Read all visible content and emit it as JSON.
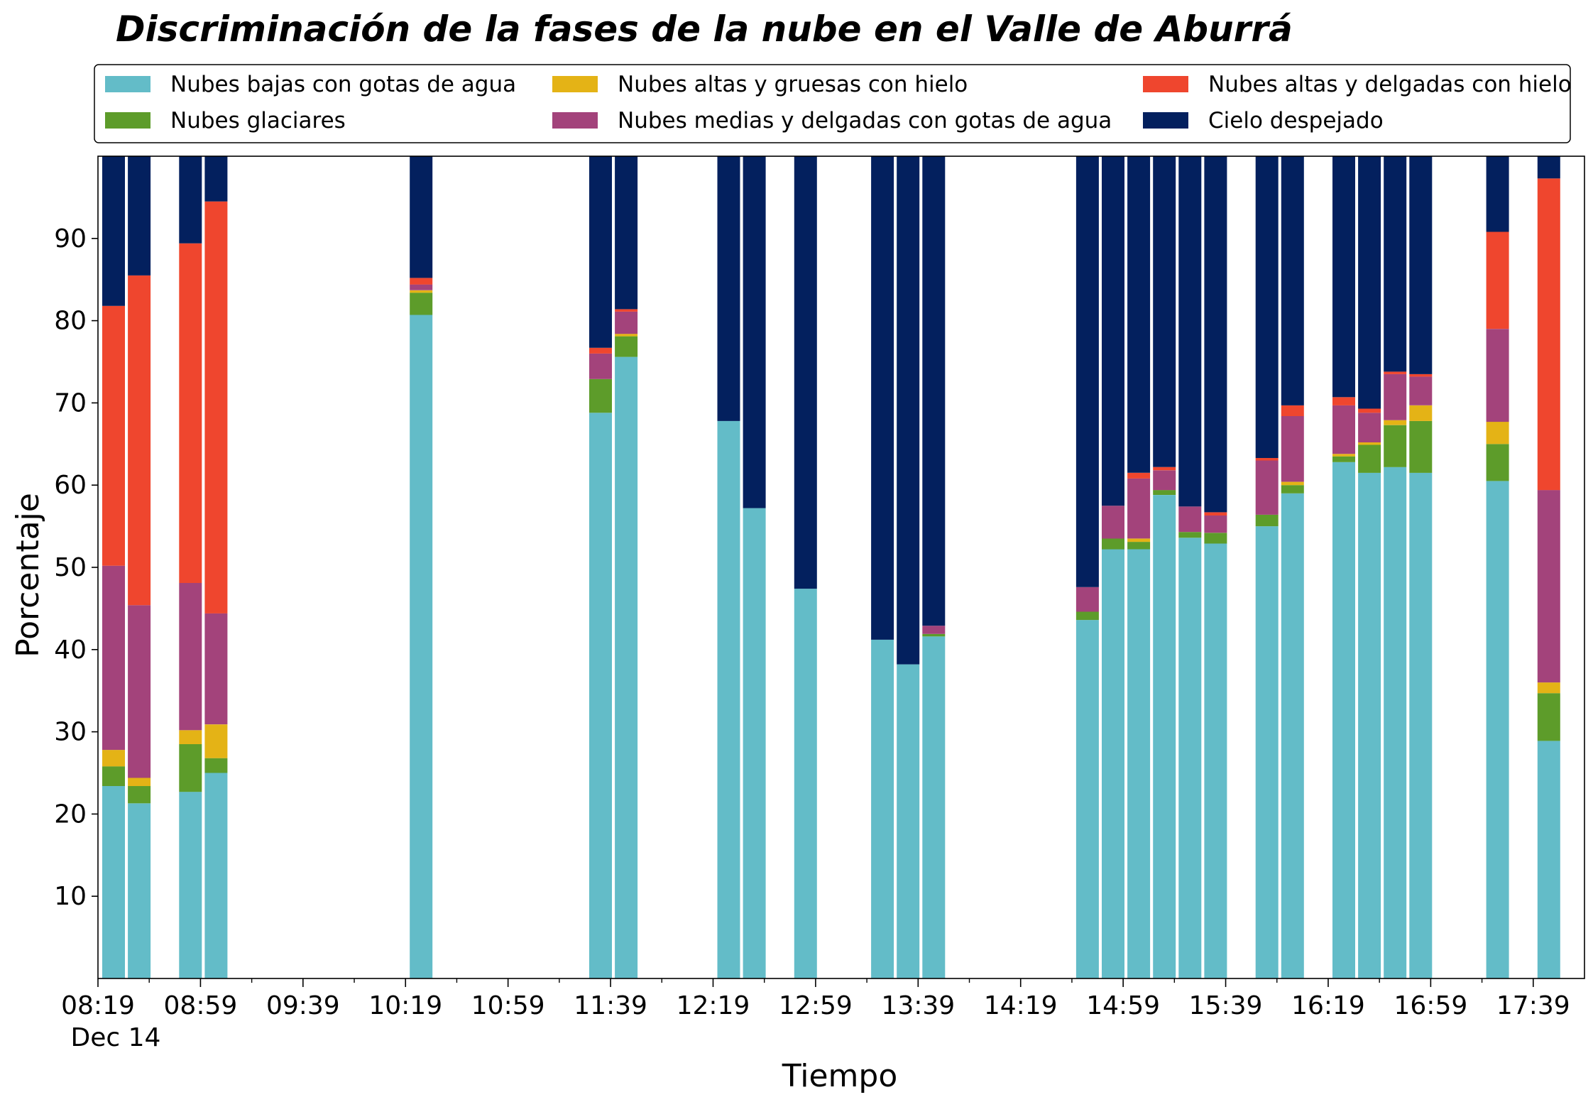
{
  "chart_data": {
    "type": "bar",
    "stacked": true,
    "title": "Discriminación de la fases de la nube en el Valle de Aburrá",
    "xlabel": "Tiempo",
    "ylabel": "Porcentaje",
    "ylim": [
      0,
      100
    ],
    "yticks": [
      10,
      20,
      30,
      40,
      50,
      60,
      70,
      80,
      90
    ],
    "xticks": [
      "08:19",
      "08:59",
      "09:39",
      "10:19",
      "10:59",
      "11:39",
      "12:19",
      "12:59",
      "13:39",
      "14:19",
      "14:59",
      "15:39",
      "16:19",
      "16:59",
      "17:39"
    ],
    "x_secondary_label": "Dec 14",
    "x_start": "08:19",
    "x_end": "17:59",
    "legend_position": "top",
    "grid": false,
    "x": [
      "08:19",
      "08:29",
      "08:49",
      "08:59",
      "10:19",
      "11:29",
      "11:39",
      "12:19",
      "12:29",
      "12:49",
      "13:19",
      "13:29",
      "13:39",
      "14:39",
      "14:49",
      "14:59",
      "15:09",
      "15:19",
      "15:29",
      "15:49",
      "15:59",
      "16:19",
      "16:29",
      "16:39",
      "16:49",
      "17:19",
      "17:39"
    ],
    "series": [
      {
        "name": "Nubes bajas con gotas de agua",
        "color": "#63bcc8",
        "values": [
          23.4,
          21.3,
          22.7,
          25.0,
          80.7,
          68.8,
          75.6,
          67.8,
          57.2,
          47.4,
          41.2,
          38.2,
          41.6,
          43.6,
          52.2,
          52.2,
          58.8,
          53.6,
          52.9,
          55.0,
          59.0,
          62.8,
          61.5,
          62.2,
          61.5,
          60.5,
          28.9
        ]
      },
      {
        "name": "Nubes glaciares",
        "color": "#5d9c2a",
        "values": [
          2.4,
          2.1,
          5.8,
          1.8,
          2.7,
          4.1,
          2.5,
          0.0,
          0.0,
          0.0,
          0.0,
          0.0,
          0.3,
          1.0,
          1.3,
          0.9,
          0.6,
          0.7,
          1.3,
          1.4,
          1.0,
          0.7,
          3.4,
          5.1,
          6.3,
          4.5,
          5.8
        ]
      },
      {
        "name": "Nubes altas y gruesas con hielo",
        "color": "#e4b316",
        "values": [
          2.0,
          1.0,
          1.7,
          4.1,
          0.3,
          0.0,
          0.3,
          0.0,
          0.0,
          0.0,
          0.0,
          0.0,
          0.0,
          0.0,
          0.0,
          0.4,
          0.0,
          0.0,
          0.0,
          0.0,
          0.4,
          0.3,
          0.3,
          0.6,
          1.9,
          2.7,
          1.3
        ]
      },
      {
        "name": "Nubes medias y delgadas con gotas de agua",
        "color": "#a3437b",
        "values": [
          22.4,
          21.0,
          17.9,
          13.5,
          0.7,
          3.1,
          2.7,
          0.0,
          0.0,
          0.0,
          0.0,
          0.0,
          1.0,
          3.0,
          4.0,
          7.3,
          2.4,
          3.1,
          2.1,
          6.6,
          8.0,
          5.9,
          3.6,
          5.6,
          3.5,
          11.3,
          23.4
        ]
      },
      {
        "name": "Nubes altas y delgadas con hielo",
        "color": "#ef462e",
        "values": [
          31.6,
          40.1,
          41.3,
          50.1,
          0.8,
          0.7,
          0.3,
          0.0,
          0.0,
          0.0,
          0.0,
          0.0,
          0.0,
          0.0,
          0.0,
          0.7,
          0.4,
          0.0,
          0.4,
          0.3,
          1.3,
          1.0,
          0.5,
          0.3,
          0.3,
          11.8,
          37.9
        ]
      },
      {
        "name": "Cielo despejado",
        "color": "#03205e",
        "values": [
          18.2,
          14.5,
          10.6,
          5.5,
          14.8,
          23.3,
          18.6,
          32.2,
          42.8,
          52.6,
          58.8,
          61.8,
          57.1,
          52.4,
          42.5,
          38.5,
          37.8,
          42.6,
          43.3,
          36.7,
          30.3,
          29.3,
          30.7,
          26.2,
          26.5,
          9.2,
          2.7
        ]
      }
    ]
  }
}
